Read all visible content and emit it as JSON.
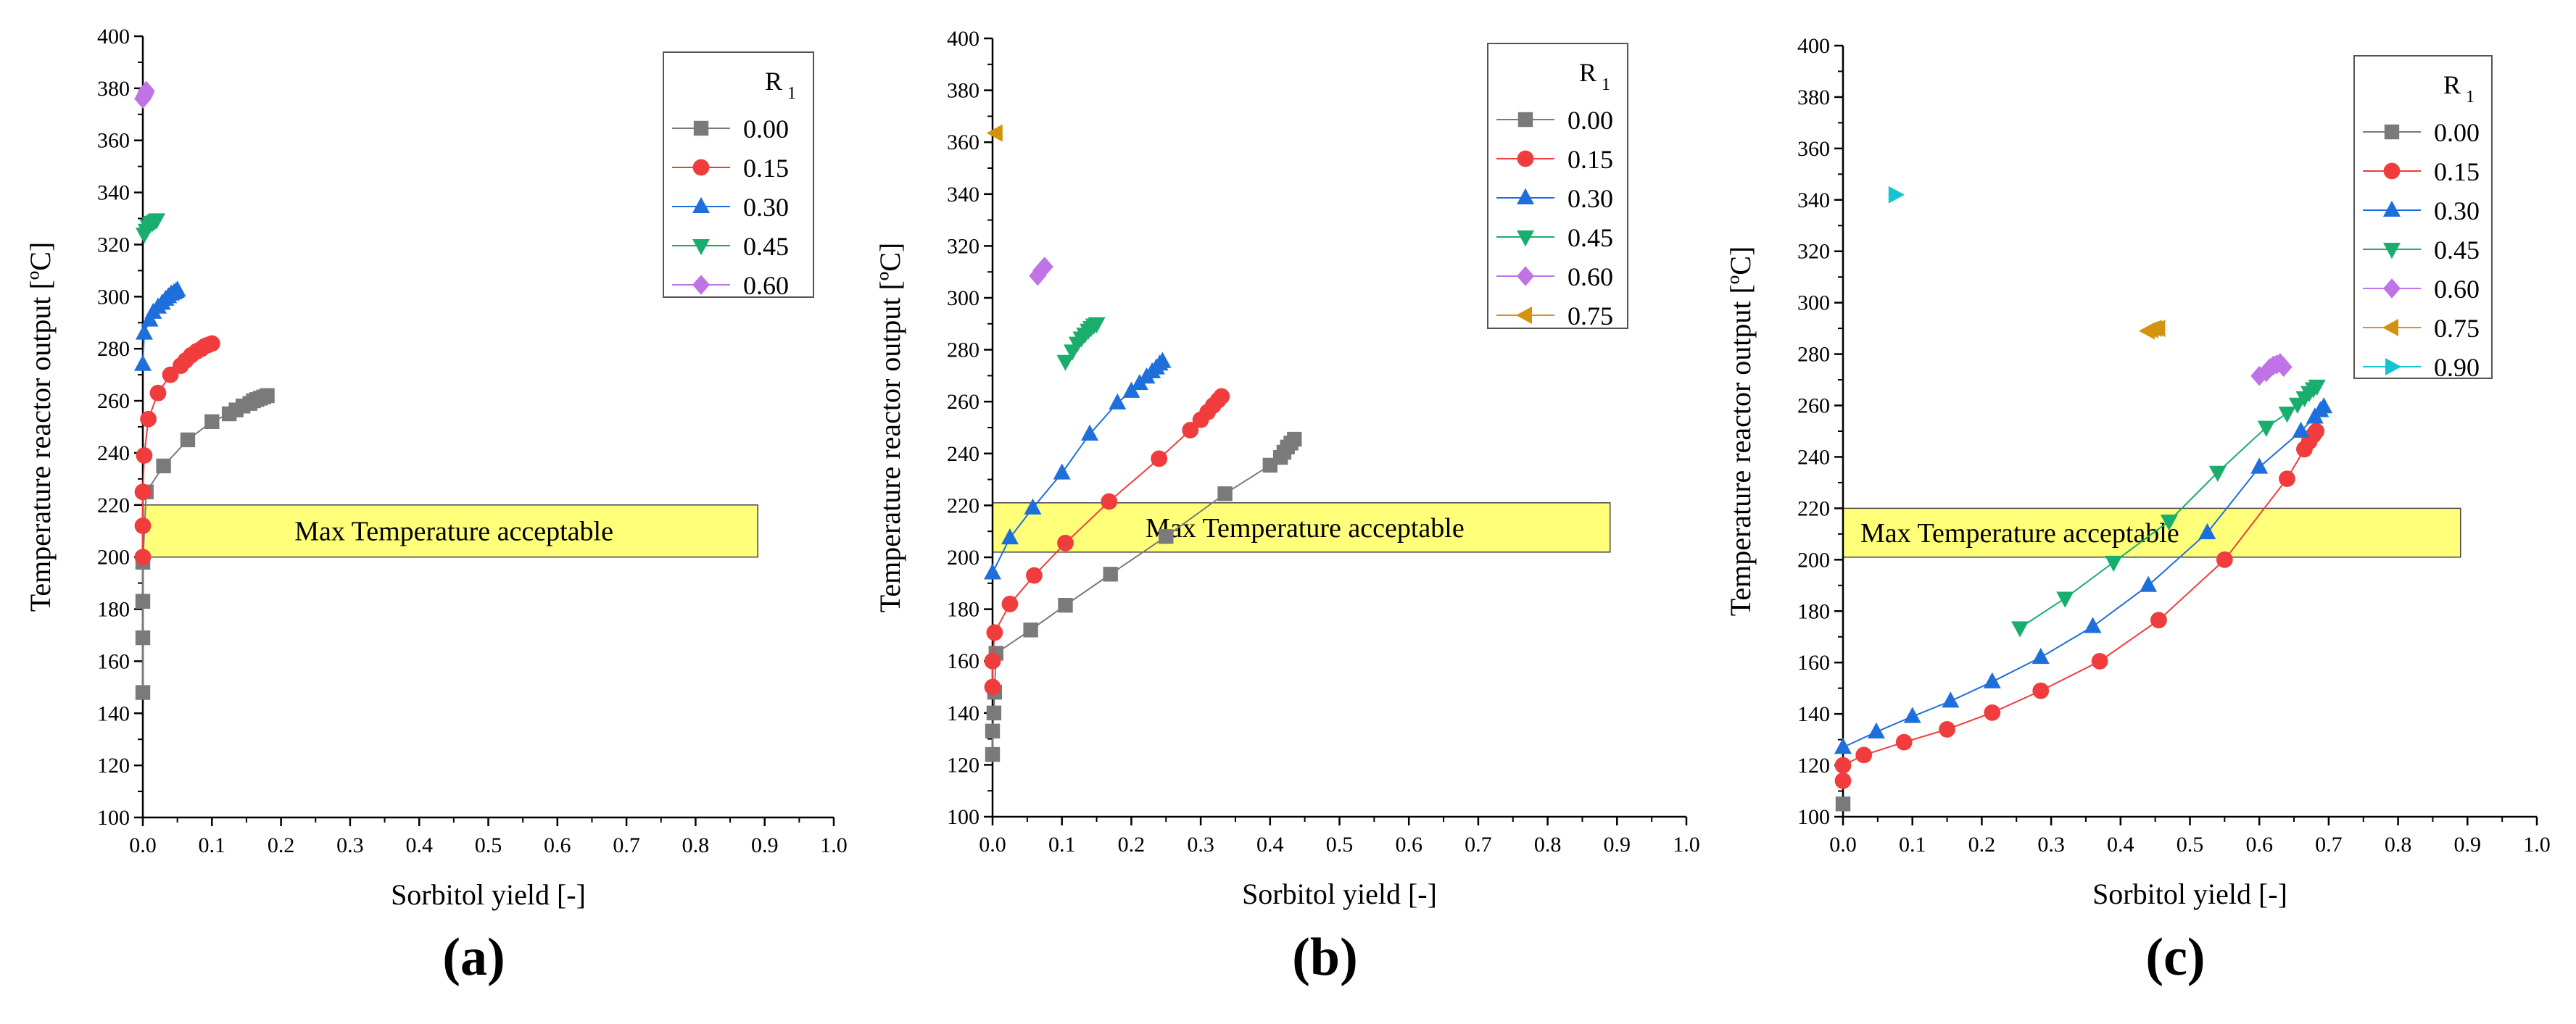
{
  "colors": {
    "s000": "#7a7a7a",
    "s015": "#f03c3c",
    "s030": "#1e6fdc",
    "s045": "#19ad6e",
    "s060": "#bf73e6",
    "s075": "#d4930f",
    "s090": "#16c3d2",
    "band": "#ffff7a"
  },
  "chart_data": [
    {
      "type": "scatter",
      "panel_label": "(a)",
      "xlabel": "Sorbitol yield [-]",
      "ylabel": "Temperature reactor output [ºC]",
      "xlim": [
        0,
        1
      ],
      "ylim": [
        100,
        400
      ],
      "x_ticks": [
        "0.0",
        "0.1",
        "0.2",
        "0.3",
        "0.4",
        "0.5",
        "0.6",
        "0.7",
        "0.8",
        "0.9",
        "1.0"
      ],
      "y_ticks": [
        "100",
        "120",
        "140",
        "160",
        "180",
        "200",
        "220",
        "240",
        "260",
        "280",
        "300",
        "320",
        "340",
        "360",
        "380",
        "400"
      ],
      "band": {
        "x_range": [
          0,
          0.89
        ],
        "y_range": [
          200,
          220
        ],
        "label": "Max Temperature acceptable"
      },
      "legend_title": "R",
      "legend_title_sub": "1",
      "series": [
        {
          "name": "0.00",
          "marker": "square",
          "color_key": "s000",
          "x": [
            0.0,
            0.0,
            0.0,
            0.0,
            0.005,
            0.03,
            0.065,
            0.1,
            0.125,
            0.135,
            0.145,
            0.155,
            0.16,
            0.165,
            0.17,
            0.175,
            0.18
          ],
          "y": [
            148,
            169,
            183,
            198,
            225,
            235,
            245,
            252,
            255,
            256.5,
            258,
            259,
            260,
            260.5,
            261,
            261.5,
            262
          ]
        },
        {
          "name": "0.15",
          "marker": "circle",
          "color_key": "s015",
          "x": [
            0.0,
            0.0,
            0.0,
            0.002,
            0.008,
            0.022,
            0.04,
            0.055,
            0.062,
            0.07,
            0.078,
            0.085,
            0.09,
            0.095,
            0.1
          ],
          "y": [
            200,
            212,
            225,
            239,
            253,
            263,
            270,
            273.5,
            275.5,
            277.5,
            279,
            280,
            281,
            281.5,
            282
          ]
        },
        {
          "name": "0.30",
          "marker": "triangle-up",
          "color_key": "s030",
          "x": [
            0.0,
            0.002,
            0.01,
            0.015,
            0.022,
            0.028,
            0.033,
            0.037,
            0.041,
            0.045,
            0.048,
            0.05
          ],
          "y": [
            274,
            286,
            291,
            294,
            296,
            297.5,
            299,
            300,
            301,
            301.5,
            302,
            302.5
          ]
        },
        {
          "name": "0.45",
          "marker": "triangle-down",
          "color_key": "s045",
          "x": [
            0.002,
            0.005,
            0.008,
            0.011,
            0.014,
            0.017,
            0.02
          ],
          "y": [
            324,
            325.5,
            327,
            328,
            328.5,
            329,
            329.5
          ]
        },
        {
          "name": "0.60",
          "marker": "diamond",
          "color_key": "s060",
          "x": [
            0.0,
            0.002,
            0.004,
            0.005
          ],
          "y": [
            376,
            377,
            378,
            379
          ]
        }
      ]
    },
    {
      "type": "scatter",
      "panel_label": "(b)",
      "xlabel": "Sorbitol yield [-]",
      "ylabel": "Temperature reactor output [ºC]",
      "xlim": [
        0,
        1
      ],
      "ylim": [
        100,
        400
      ],
      "x_ticks": [
        "0.0",
        "0.1",
        "0.2",
        "0.3",
        "0.4",
        "0.5",
        "0.6",
        "0.7",
        "0.8",
        "0.9",
        "1.0"
      ],
      "y_ticks": [
        "100",
        "120",
        "140",
        "160",
        "180",
        "200",
        "220",
        "240",
        "260",
        "280",
        "300",
        "320",
        "340",
        "360",
        "380",
        "400"
      ],
      "band": {
        "x_range": [
          0,
          0.89
        ],
        "y_range": [
          202,
          221
        ],
        "label": "Max Temperature acceptable"
      },
      "legend_title": "R",
      "legend_title_sub": "1",
      "series": [
        {
          "name": "0.00",
          "marker": "square",
          "color_key": "s000",
          "x": [
            0.0,
            0.0,
            0.002,
            0.003,
            0.005,
            0.055,
            0.105,
            0.17,
            0.25,
            0.335,
            0.4,
            0.415,
            0.42,
            0.425,
            0.43,
            0.435
          ],
          "y": [
            124,
            133,
            140,
            148,
            163,
            172,
            181.5,
            193.5,
            208,
            224.5,
            235.5,
            238.5,
            240.5,
            242.5,
            244,
            245.5
          ]
        },
        {
          "name": "0.15",
          "marker": "circle",
          "color_key": "s015",
          "x": [
            0.0,
            0.0,
            0.003,
            0.025,
            0.06,
            0.105,
            0.168,
            0.24,
            0.285,
            0.3,
            0.31,
            0.318,
            0.325,
            0.33
          ],
          "y": [
            150,
            160,
            171,
            182,
            193,
            205.5,
            221.5,
            238,
            249,
            253,
            256,
            258.5,
            260.5,
            262
          ]
        },
        {
          "name": "0.30",
          "marker": "triangle-up",
          "color_key": "s030",
          "x": [
            0.0,
            0.025,
            0.058,
            0.1,
            0.14,
            0.18,
            0.2,
            0.212,
            0.222,
            0.23,
            0.236,
            0.241,
            0.245
          ],
          "y": [
            194,
            207.5,
            219,
            232.5,
            247.5,
            259.5,
            264,
            267,
            269.5,
            271.5,
            273,
            274.5,
            275.5
          ]
        },
        {
          "name": "0.45",
          "marker": "triangle-down",
          "color_key": "s045",
          "x": [
            0.105,
            0.115,
            0.122,
            0.128,
            0.133,
            0.138,
            0.142,
            0.146,
            0.15
          ],
          "y": [
            275.5,
            279.5,
            282.5,
            284.5,
            286,
            287.5,
            288.5,
            289.5,
            290
          ]
        },
        {
          "name": "0.60",
          "marker": "diamond",
          "color_key": "s060",
          "x": [
            0.065,
            0.07,
            0.075
          ],
          "y": [
            308.5,
            310.5,
            312
          ]
        },
        {
          "name": "0.75",
          "marker": "triangle-left",
          "color_key": "s075",
          "x": [
            0.005
          ],
          "y": [
            363.5
          ]
        }
      ]
    },
    {
      "type": "scatter",
      "panel_label": "(c)",
      "xlabel": "Sorbitol yield [-]",
      "ylabel": "Temperature reactor output [ºC]",
      "xlim": [
        0,
        1
      ],
      "ylim": [
        100,
        400
      ],
      "x_ticks": [
        "0.0",
        "0.1",
        "0.2",
        "0.3",
        "0.4",
        "0.5",
        "0.6",
        "0.7",
        "0.8",
        "0.9",
        "1.0"
      ],
      "y_ticks": [
        "100",
        "120",
        "140",
        "160",
        "180",
        "200",
        "220",
        "240",
        "260",
        "280",
        "300",
        "320",
        "340",
        "360",
        "380",
        "400"
      ],
      "band": {
        "x_range": [
          0,
          0.89
        ],
        "y_range": [
          201,
          220
        ],
        "label": "Max Temperature acceptable"
      },
      "legend_title": "R",
      "legend_title_sub": "1",
      "series": [
        {
          "name": "0.00",
          "marker": "square",
          "color_key": "s000",
          "x": [
            0.0
          ],
          "y": [
            105
          ]
        },
        {
          "name": "0.15",
          "marker": "circle",
          "color_key": "s015",
          "x": [
            0.0,
            0.0,
            0.03,
            0.088,
            0.15,
            0.215,
            0.285,
            0.37,
            0.455,
            0.55,
            0.64,
            0.665,
            0.672,
            0.678,
            0.682
          ],
          "y": [
            114,
            120,
            124,
            129,
            134,
            140.5,
            149,
            160.5,
            176.5,
            200,
            231.5,
            243,
            246,
            248.5,
            250
          ]
        },
        {
          "name": "0.30",
          "marker": "triangle-up",
          "color_key": "s030",
          "x": [
            0.0,
            0.048,
            0.1,
            0.155,
            0.215,
            0.285,
            0.36,
            0.44,
            0.525,
            0.6,
            0.66,
            0.68,
            0.688,
            0.693
          ],
          "y": [
            127,
            133,
            139,
            145,
            152.5,
            162,
            174,
            190,
            210.5,
            236,
            250,
            255.5,
            258,
            259.5
          ]
        },
        {
          "name": "0.45",
          "marker": "triangle-down",
          "color_key": "s045",
          "x": [
            0.255,
            0.32,
            0.39,
            0.47,
            0.54,
            0.61,
            0.64,
            0.655,
            0.665,
            0.672,
            0.678,
            0.683
          ],
          "y": [
            173.5,
            185,
            199,
            215,
            234,
            251.5,
            257,
            260.5,
            263,
            265,
            266.5,
            267.5
          ]
        },
        {
          "name": "0.60",
          "marker": "diamond",
          "color_key": "s060",
          "x": [
            0.6,
            0.61,
            0.615,
            0.62,
            0.625,
            0.63,
            0.635
          ],
          "y": [
            271.5,
            273,
            274.5,
            275.5,
            276,
            276.5,
            275
          ]
        },
        {
          "name": "0.75",
          "marker": "triangle-left",
          "color_key": "s075",
          "x": [
            0.44,
            0.445,
            0.45,
            0.455
          ],
          "y": [
            289,
            289.5,
            290,
            290
          ]
        },
        {
          "name": "0.90",
          "marker": "triangle-right",
          "color_key": "s090",
          "x": [
            0.075
          ],
          "y": [
            342
          ]
        }
      ]
    }
  ]
}
